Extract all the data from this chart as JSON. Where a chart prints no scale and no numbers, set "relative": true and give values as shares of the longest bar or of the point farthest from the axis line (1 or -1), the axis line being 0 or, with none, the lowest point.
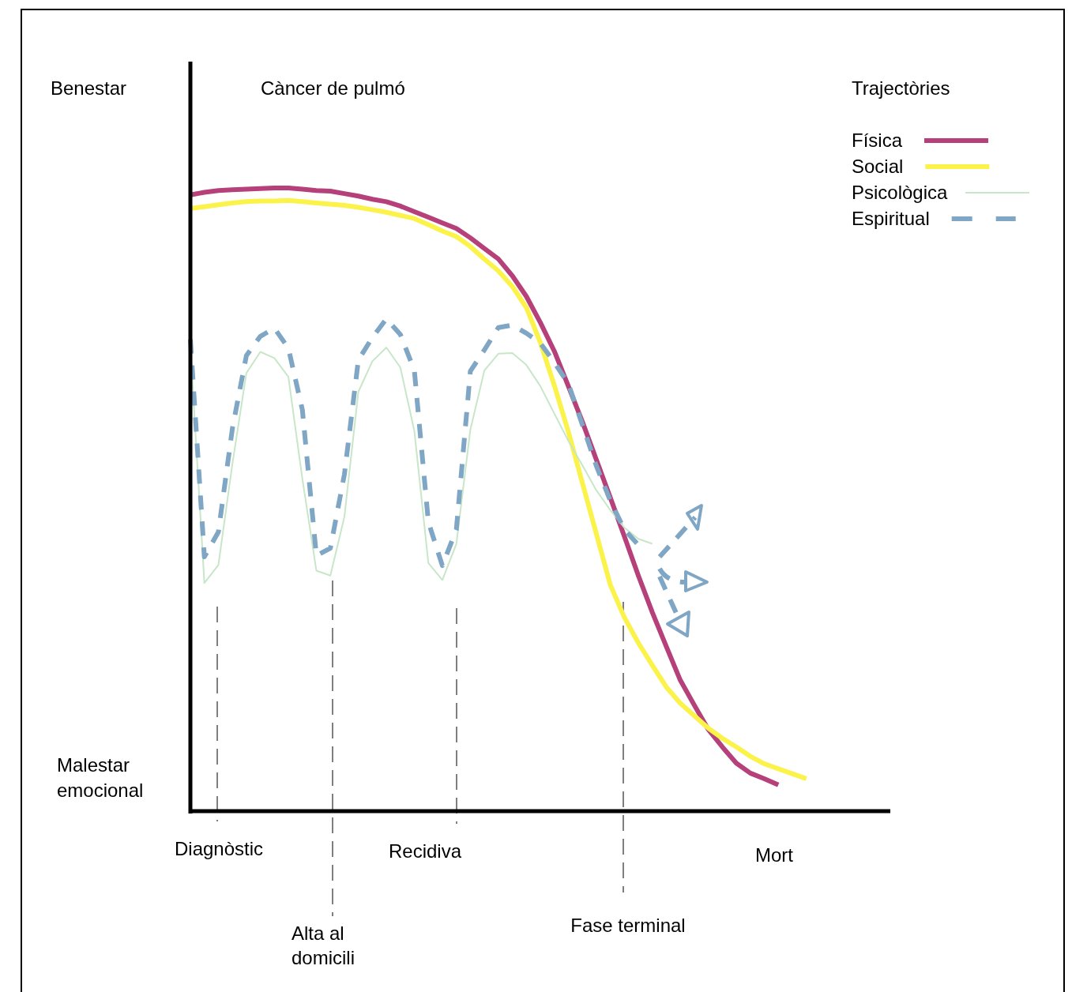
{
  "chart_data": {
    "type": "line",
    "title": "Càncer de pulmó",
    "legend_title": "Trajectòries",
    "relative": true,
    "legend": "top right",
    "categories": [
      null,
      null,
      null,
      null,
      null,
      null,
      null,
      null,
      null,
      null,
      null,
      null,
      null,
      null,
      null,
      null,
      null,
      null,
      null,
      null,
      null,
      null,
      null,
      null,
      null,
      null,
      null,
      null,
      null,
      null,
      null,
      null,
      null,
      null,
      null,
      null,
      null,
      null,
      null,
      null,
      null,
      null,
      null,
      null,
      null,
      null
    ],
    "series": [
      {
        "name": "Física",
        "color": "#b5407a",
        "line_style": "solid",
        "values": [
          0.989,
          0.993,
          0.996,
          0.997,
          0.998,
          0.999,
          1.0,
          1.0,
          0.998,
          0.996,
          0.995,
          0.991,
          0.987,
          0.982,
          0.978,
          0.971,
          0.962,
          0.953,
          0.944,
          0.935,
          0.92,
          0.903,
          0.886,
          0.859,
          0.826,
          0.784,
          0.738,
          0.682,
          0.625,
          0.564,
          0.503,
          0.441,
          0.378,
          0.319,
          0.264,
          0.21,
          0.17,
          0.131,
          0.103,
          0.077,
          0.061,
          0.052,
          0.042,
          null,
          null,
          null
        ]
      },
      {
        "name": "Social",
        "color": "#fbf24a",
        "line_style": "solid",
        "values": [
          0.967,
          0.97,
          0.973,
          0.976,
          0.978,
          0.979,
          0.979,
          0.98,
          0.978,
          0.976,
          0.974,
          0.972,
          0.969,
          0.965,
          0.961,
          0.956,
          0.951,
          0.941,
          0.931,
          0.922,
          0.906,
          0.886,
          0.867,
          0.842,
          0.808,
          0.752,
          0.683,
          0.609,
          0.527,
          0.445,
          0.363,
          0.311,
          0.27,
          0.234,
          0.199,
          0.173,
          0.153,
          0.133,
          0.117,
          0.103,
          0.088,
          0.076,
          0.068,
          0.06,
          0.052,
          null
        ]
      },
      {
        "name": "Psicològica",
        "color": "#c8e6c8",
        "line_style": "solid",
        "values": [
          0.744,
          0.366,
          0.395,
          0.557,
          0.703,
          0.737,
          0.727,
          0.697,
          0.533,
          0.386,
          0.378,
          0.472,
          0.673,
          0.722,
          0.744,
          0.712,
          0.61,
          0.398,
          0.371,
          0.429,
          0.612,
          0.707,
          0.734,
          0.735,
          0.716,
          0.682,
          0.638,
          0.594,
          0.555,
          0.515,
          0.483,
          0.455,
          0.437,
          0.429,
          null,
          null,
          null,
          null,
          null,
          null,
          null,
          null,
          null,
          null,
          null,
          null
        ]
      },
      {
        "name": "Espiritual",
        "color": "#7fa6c4",
        "line_style": "dashed",
        "values": [
          0.757,
          0.408,
          0.448,
          0.614,
          0.731,
          0.762,
          0.775,
          0.743,
          0.644,
          0.41,
          0.422,
          0.54,
          0.724,
          0.76,
          0.79,
          0.765,
          0.707,
          0.464,
          0.394,
          0.452,
          0.706,
          0.74,
          0.776,
          0.78,
          0.767,
          0.751,
          0.72,
          0.686,
          0.62,
          0.554,
          0.498,
          0.452,
          0.427,
          null,
          null,
          null,
          null,
          null,
          null,
          null,
          null,
          null,
          null,
          null,
          null,
          null
        ]
      }
    ],
    "ref_lines": [
      {
        "axis": "x",
        "label": "Diagnòstic",
        "color": "#555555",
        "line_style": "dashed"
      },
      {
        "axis": "x",
        "label": "Alta al domicili",
        "color": "#555555",
        "line_style": "dashed"
      },
      {
        "axis": "x",
        "label": "Recidiva",
        "color": "#555555",
        "line_style": "dashed"
      },
      {
        "axis": "x",
        "label": "Fase terminal",
        "color": "#555555",
        "line_style": "dashed"
      }
    ],
    "annotations": [
      "Benestar",
      "Malestar emocional",
      "Mort"
    ]
  }
}
